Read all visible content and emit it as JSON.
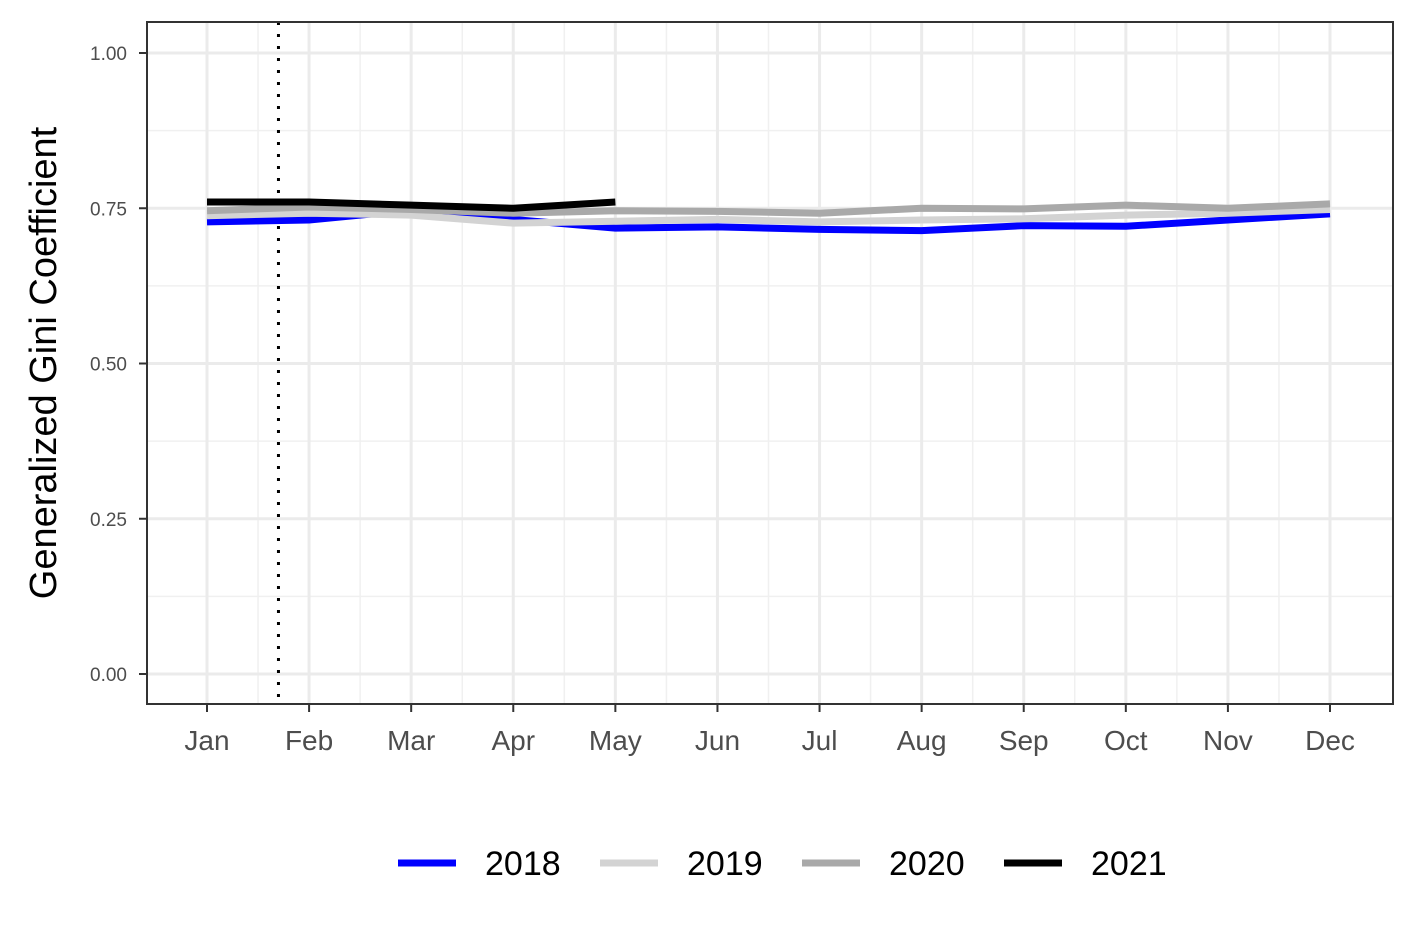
{
  "chart_data": {
    "type": "line",
    "title": "",
    "xlabel": "",
    "ylabel": "Generalized Gini Coefficient",
    "categories": [
      "Jan",
      "Feb",
      "Mar",
      "Apr",
      "May",
      "Jun",
      "Jul",
      "Aug",
      "Sep",
      "Oct",
      "Nov",
      "Dec"
    ],
    "y_ticks": [
      "0.00",
      "0.25",
      "0.50",
      "0.75",
      "1.00"
    ],
    "ylim": [
      0,
      1.05
    ],
    "grid": true,
    "legend_position": "bottom",
    "vline_x": 1.7,
    "vline_style": "dotted",
    "series": [
      {
        "name": "2018",
        "color": "#0000ff",
        "x": [
          1,
          2,
          3,
          4,
          5,
          6,
          7,
          8,
          9,
          10,
          11,
          12
        ],
        "values": [
          0.728,
          0.731,
          0.747,
          0.732,
          0.718,
          0.72,
          0.716,
          0.714,
          0.722,
          0.721,
          0.731,
          0.741
        ]
      },
      {
        "name": "2019",
        "color": "#d3d3d3",
        "x": [
          1,
          2,
          3,
          4,
          5,
          6,
          7,
          8,
          9,
          10,
          11,
          12
        ],
        "values": [
          0.738,
          0.742,
          0.739,
          0.726,
          0.729,
          0.732,
          0.728,
          0.731,
          0.733,
          0.739,
          0.742,
          0.748
        ]
      },
      {
        "name": "2020",
        "color": "#a9a9a9",
        "x": [
          1,
          2,
          3,
          4,
          5,
          6,
          7,
          8,
          9,
          10,
          11,
          12
        ],
        "values": [
          0.746,
          0.752,
          0.748,
          0.742,
          0.746,
          0.745,
          0.742,
          0.75,
          0.749,
          0.755,
          0.75,
          0.757
        ]
      },
      {
        "name": "2021",
        "color": "#000000",
        "x": [
          1,
          2,
          3,
          4,
          5
        ],
        "values": [
          0.76,
          0.76,
          0.755,
          0.75,
          0.76
        ]
      }
    ]
  }
}
